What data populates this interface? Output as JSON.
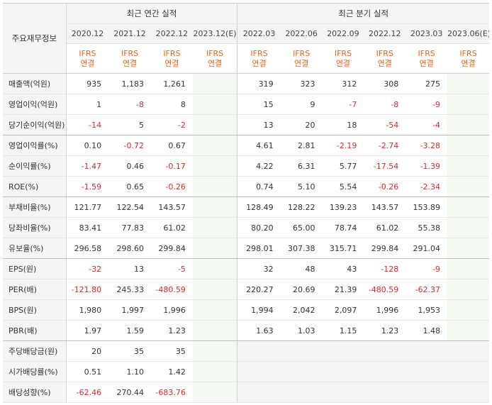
{
  "corner_label": "주요재무정보",
  "groups": [
    {
      "label": "최근 연간 실적"
    },
    {
      "label": "최근 분기 실적"
    }
  ],
  "columns": [
    {
      "date": "2020.12",
      "ifrs1": "IFRS",
      "ifrs2": "연결",
      "est": false
    },
    {
      "date": "2021.12",
      "ifrs1": "IFRS",
      "ifrs2": "연결",
      "est": false
    },
    {
      "date": "2022.12",
      "ifrs1": "IFRS",
      "ifrs2": "연결",
      "est": false
    },
    {
      "date": "2023.12(E)",
      "ifrs1": "IFRS",
      "ifrs2": "연결",
      "est": true
    },
    {
      "date": "2022.03",
      "ifrs1": "IFRS",
      "ifrs2": "연결",
      "est": false
    },
    {
      "date": "2022.06",
      "ifrs1": "IFRS",
      "ifrs2": "연결",
      "est": false
    },
    {
      "date": "2022.09",
      "ifrs1": "IFRS",
      "ifrs2": "연결",
      "est": false
    },
    {
      "date": "2022.12",
      "ifrs1": "IFRS",
      "ifrs2": "연결",
      "est": false
    },
    {
      "date": "2023.03",
      "ifrs1": "IFRS",
      "ifrs2": "연결",
      "est": false
    },
    {
      "date": "2023.06(E)",
      "ifrs1": "IFRS",
      "ifrs2": "연결",
      "est": true
    }
  ],
  "rows": [
    {
      "label": "매출액(억원)",
      "values": [
        "935",
        "1,183",
        "1,261",
        "",
        "319",
        "323",
        "312",
        "308",
        "275",
        ""
      ]
    },
    {
      "label": "영업이익(억원)",
      "values": [
        "1",
        "-8",
        "8",
        "",
        "15",
        "9",
        "-7",
        "-8",
        "-9",
        ""
      ]
    },
    {
      "label": "당기순이익(억원)",
      "values": [
        "-14",
        "5",
        "-2",
        "",
        "13",
        "20",
        "18",
        "-54",
        "-4",
        ""
      ]
    },
    {
      "label": "영업이익률(%)",
      "values": [
        "0.10",
        "-0.72",
        "0.67",
        "",
        "4.61",
        "2.81",
        "-2.19",
        "-2.74",
        "-3.28",
        ""
      ]
    },
    {
      "label": "순이익률(%)",
      "values": [
        "-1.47",
        "0.46",
        "-0.17",
        "",
        "4.22",
        "6.31",
        "5.77",
        "-17.54",
        "-1.39",
        ""
      ]
    },
    {
      "label": "ROE(%)",
      "values": [
        "-1.59",
        "0.65",
        "-0.26",
        "",
        "0.74",
        "5.10",
        "5.54",
        "-0.26",
        "-2.34",
        ""
      ]
    },
    {
      "label": "부채비율(%)",
      "values": [
        "121.77",
        "122.54",
        "143.57",
        "",
        "128.49",
        "128.22",
        "139.23",
        "143.57",
        "153.89",
        ""
      ]
    },
    {
      "label": "당좌비율(%)",
      "values": [
        "83.41",
        "77.83",
        "61.02",
        "",
        "80.20",
        "65.00",
        "78.74",
        "61.02",
        "55.38",
        ""
      ]
    },
    {
      "label": "유보율(%)",
      "values": [
        "296.58",
        "298.60",
        "299.84",
        "",
        "298.01",
        "307.38",
        "315.71",
        "299.84",
        "291.04",
        ""
      ]
    },
    {
      "label": "EPS(원)",
      "values": [
        "-32",
        "13",
        "-5",
        "",
        "32",
        "48",
        "43",
        "-128",
        "-9",
        ""
      ]
    },
    {
      "label": "PER(배)",
      "values": [
        "-121.80",
        "245.33",
        "-480.59",
        "",
        "220.27",
        "20.69",
        "21.39",
        "-480.59",
        "-62.37",
        ""
      ]
    },
    {
      "label": "BPS(원)",
      "values": [
        "1,980",
        "1,997",
        "1,996",
        "",
        "1,994",
        "2,042",
        "2,097",
        "1,996",
        "1,953",
        ""
      ]
    },
    {
      "label": "PBR(배)",
      "values": [
        "1.97",
        "1.59",
        "1.23",
        "",
        "1.63",
        "1.03",
        "1.15",
        "1.23",
        "1.48",
        ""
      ]
    },
    {
      "label": "주당배당금(원)",
      "values": [
        "20",
        "35",
        "35",
        "",
        "",
        "",
        "",
        "",
        "",
        ""
      ]
    },
    {
      "label": "시가배당률(%)",
      "values": [
        "0.51",
        "1.10",
        "1.42",
        "",
        "",
        "",
        "",
        "",
        "",
        ""
      ]
    },
    {
      "label": "배당성향(%)",
      "values": [
        "-62.46",
        "270.44",
        "-683.76",
        "",
        "",
        "",
        "",
        "",
        "",
        ""
      ]
    }
  ],
  "colors": {
    "negative": "#d12b2b",
    "ifrs": "#e4641a",
    "estimate_bg": "#f4f9f1",
    "header_bg": "#f5f5f5"
  }
}
